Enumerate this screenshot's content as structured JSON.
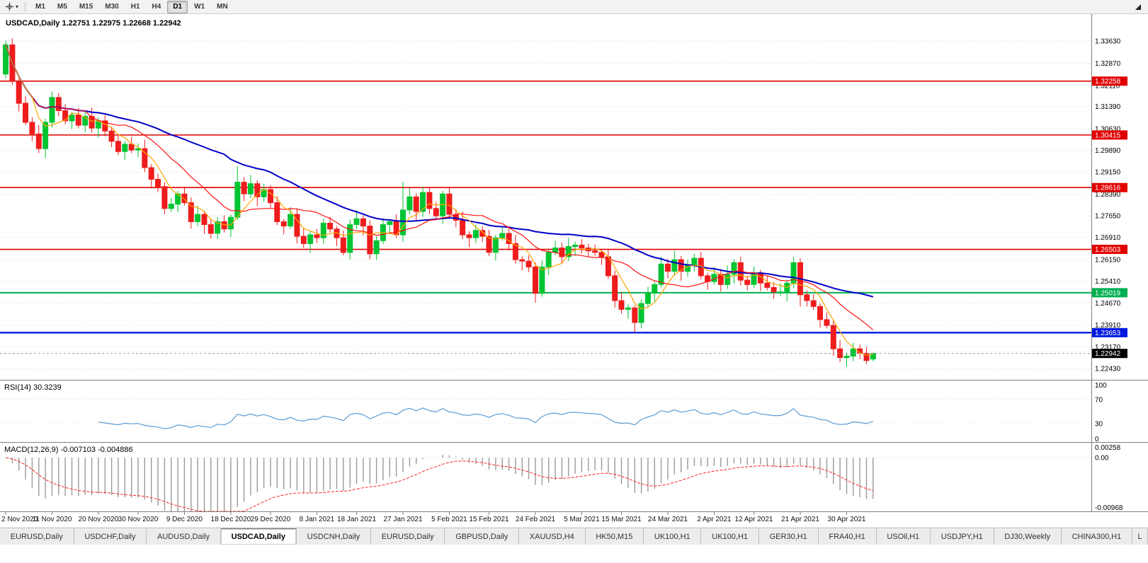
{
  "toolbar": {
    "timeframes": [
      "M1",
      "M5",
      "M15",
      "M30",
      "H1",
      "H4",
      "D1",
      "W1",
      "MN"
    ],
    "active_timeframe": "D1"
  },
  "chart": {
    "title": "USDCAD,Daily 1.22751 1.22975 1.22668 1.22942",
    "symbol": "USDCAD,Daily",
    "ohlc": {
      "open": "1.22751",
      "high": "1.22975",
      "low": "1.22668",
      "close": "1.22942"
    },
    "current_price": "1.22942"
  },
  "price_axis": {
    "ticks": [
      "1.33630",
      "1.32870",
      "1.32110",
      "1.31390",
      "1.30630",
      "1.29890",
      "1.29150",
      "1.28390",
      "1.27650",
      "1.26910",
      "1.26150",
      "1.25410",
      "1.24670",
      "1.23910",
      "1.23170",
      "1.22430"
    ]
  },
  "hlines": [
    {
      "value": 1.32258,
      "label": "1.32258",
      "color": "#e10000",
      "width": 1.6
    },
    {
      "value": 1.30415,
      "label": "1.30415",
      "color": "#e10000",
      "width": 1.6
    },
    {
      "value": 1.28616,
      "label": "1.28616",
      "color": "#e10000",
      "width": 1.6
    },
    {
      "value": 1.26503,
      "label": "1.26503",
      "color": "#e10000",
      "width": 1.6
    },
    {
      "value": 1.25019,
      "label": "1.25019",
      "color": "#00b050",
      "width": 2
    },
    {
      "value": 1.23653,
      "label": "1.23653",
      "color": "#0018e0",
      "width": 2.4
    }
  ],
  "moving_averages": [
    {
      "period": 34,
      "color": "#0000c8",
      "width": 2
    },
    {
      "period": 13,
      "color": "#ff1010",
      "width": 1.2
    },
    {
      "period": 5,
      "color": "#ffa500",
      "width": 1.2
    }
  ],
  "indicators": {
    "rsi": {
      "label": "RSI(14) 30.3239",
      "period": 14,
      "current": "30.3239",
      "levels": [
        70,
        30
      ],
      "scale": [
        "100",
        "70",
        "30",
        "0"
      ],
      "scale_values": [
        100,
        70,
        30,
        0
      ],
      "color": "#5b9bd5"
    },
    "macd": {
      "label": "MACD(12,26,9) -0.007103 -0.004886",
      "fast": 12,
      "slow": 26,
      "signal": 9,
      "current_macd": "-0.007103",
      "current_signal": "-0.004886",
      "scale_top": "0.00258",
      "scale_zero": "0.00",
      "scale_bottom": "-0.00968",
      "range": [
        0.00258,
        -0.00968
      ],
      "histogram_color": "#9a9a9a",
      "signal_color": "#ff2020"
    }
  },
  "colors": {
    "up": "#00c432",
    "down": "#ee1c1c",
    "grid": "#d9d9d9",
    "axis_text": "#000000",
    "current_price_bg": "#000000",
    "separator": "#808080",
    "bg": "#ffffff"
  },
  "chart_data": {
    "type": "candlestick",
    "symbol": "USDCAD",
    "timeframe": "Daily",
    "price_range_top": 1.3455,
    "price_range_bottom": 1.2204,
    "candles": [
      [
        1.325,
        1.3365,
        1.3235,
        1.335
      ],
      [
        1.335,
        1.3372,
        1.3213,
        1.3225
      ],
      [
        1.3225,
        1.3235,
        1.3122,
        1.315
      ],
      [
        1.315,
        1.3175,
        1.3075,
        1.3085
      ],
      [
        1.3085,
        1.3103,
        1.3021,
        1.3045
      ],
      [
        1.3045,
        1.3075,
        1.298,
        1.2995
      ],
      [
        1.2995,
        1.3097,
        1.2963,
        1.3085
      ],
      [
        1.3085,
        1.319,
        1.3067,
        1.317
      ],
      [
        1.317,
        1.3185,
        1.3105,
        1.3125
      ],
      [
        1.3125,
        1.3147,
        1.3078,
        1.309
      ],
      [
        1.309,
        1.312,
        1.3062,
        1.311
      ],
      [
        1.311,
        1.3135,
        1.3065,
        1.3075
      ],
      [
        1.3075,
        1.3123,
        1.3051,
        1.3105
      ],
      [
        1.3105,
        1.3135,
        1.305,
        1.3065
      ],
      [
        1.3065,
        1.3102,
        1.3033,
        1.309
      ],
      [
        1.309,
        1.311,
        1.3037,
        1.3055
      ],
      [
        1.3055,
        1.307,
        1.3,
        1.302
      ],
      [
        1.302,
        1.3042,
        1.2973,
        1.2985
      ],
      [
        1.2985,
        1.302,
        1.2957,
        1.301
      ],
      [
        1.301,
        1.3035,
        1.298,
        1.299
      ],
      [
        1.299,
        1.3013,
        1.2966,
        1.2995
      ],
      [
        1.2995,
        1.3025,
        1.2915,
        1.293
      ],
      [
        1.293,
        1.2942,
        1.2858,
        1.289
      ],
      [
        1.289,
        1.291,
        1.2847,
        1.2865
      ],
      [
        1.2865,
        1.288,
        1.277,
        1.279
      ],
      [
        1.279,
        1.2827,
        1.2778,
        1.2805
      ],
      [
        1.2805,
        1.285,
        1.2777,
        1.284
      ],
      [
        1.284,
        1.2865,
        1.28,
        1.281
      ],
      [
        1.281,
        1.2828,
        1.2721,
        1.2745
      ],
      [
        1.2745,
        1.28,
        1.273,
        1.277
      ],
      [
        1.277,
        1.2782,
        1.2703,
        1.2735
      ],
      [
        1.2735,
        1.2755,
        1.2687,
        1.2705
      ],
      [
        1.2705,
        1.276,
        1.2685,
        1.2745
      ],
      [
        1.2745,
        1.2767,
        1.2708,
        1.272
      ],
      [
        1.272,
        1.277,
        1.2692,
        1.276
      ],
      [
        1.276,
        1.2935,
        1.275,
        1.288
      ],
      [
        1.288,
        1.2898,
        1.2816,
        1.284
      ],
      [
        1.284,
        1.2905,
        1.2825,
        1.2875
      ],
      [
        1.2875,
        1.2887,
        1.2798,
        1.283
      ],
      [
        1.283,
        1.2875,
        1.2812,
        1.2855
      ],
      [
        1.2855,
        1.287,
        1.279,
        1.281
      ],
      [
        1.281,
        1.2832,
        1.2733,
        1.2745
      ],
      [
        1.2745,
        1.2755,
        1.2702,
        1.273
      ],
      [
        1.273,
        1.2795,
        1.272,
        1.277
      ],
      [
        1.277,
        1.2788,
        1.2671,
        1.2695
      ],
      [
        1.2695,
        1.2725,
        1.2655,
        1.267
      ],
      [
        1.267,
        1.2712,
        1.2638,
        1.27
      ],
      [
        1.27,
        1.272,
        1.2672,
        1.269
      ],
      [
        1.269,
        1.2755,
        1.267,
        1.274
      ],
      [
        1.274,
        1.2762,
        1.2708,
        1.272
      ],
      [
        1.272,
        1.273,
        1.2662,
        1.269
      ],
      [
        1.269,
        1.2715,
        1.263,
        1.264
      ],
      [
        1.264,
        1.2753,
        1.2616,
        1.2735
      ],
      [
        1.2735,
        1.2785,
        1.272,
        1.2755
      ],
      [
        1.2755,
        1.2767,
        1.2698,
        1.273
      ],
      [
        1.273,
        1.275,
        1.2617,
        1.2635
      ],
      [
        1.2635,
        1.2695,
        1.2615,
        1.268
      ],
      [
        1.268,
        1.2757,
        1.2668,
        1.2735
      ],
      [
        1.2735,
        1.2755,
        1.2707,
        1.2745
      ],
      [
        1.2745,
        1.277,
        1.269,
        1.27
      ],
      [
        1.27,
        1.2881,
        1.2676,
        1.2785
      ],
      [
        1.2785,
        1.286,
        1.277,
        1.283
      ],
      [
        1.283,
        1.2842,
        1.2748,
        1.278
      ],
      [
        1.278,
        1.2865,
        1.2762,
        1.2845
      ],
      [
        1.2845,
        1.286,
        1.277,
        1.279
      ],
      [
        1.279,
        1.2812,
        1.2753,
        1.2765
      ],
      [
        1.2765,
        1.285,
        1.2737,
        1.284
      ],
      [
        1.284,
        1.2865,
        1.276,
        1.277
      ],
      [
        1.277,
        1.2788,
        1.2726,
        1.275
      ],
      [
        1.275,
        1.278,
        1.2685,
        1.27
      ],
      [
        1.27,
        1.2712,
        1.2658,
        1.269
      ],
      [
        1.269,
        1.2735,
        1.2672,
        1.2715
      ],
      [
        1.2715,
        1.273,
        1.2675,
        1.2695
      ],
      [
        1.2695,
        1.2717,
        1.2628,
        1.264
      ],
      [
        1.264,
        1.27,
        1.2612,
        1.269
      ],
      [
        1.269,
        1.273,
        1.268,
        1.2705
      ],
      [
        1.2705,
        1.2723,
        1.2646,
        1.267
      ],
      [
        1.267,
        1.27,
        1.26,
        1.2615
      ],
      [
        1.2615,
        1.2627,
        1.2578,
        1.261
      ],
      [
        1.261,
        1.263,
        1.2572,
        1.259
      ],
      [
        1.259,
        1.2605,
        1.2468,
        1.25
      ],
      [
        1.25,
        1.2612,
        1.2488,
        1.259
      ],
      [
        1.259,
        1.265,
        1.2562,
        1.264
      ],
      [
        1.264,
        1.268,
        1.263,
        1.2655
      ],
      [
        1.2655,
        1.2673,
        1.2601,
        1.2625
      ],
      [
        1.2625,
        1.269,
        1.261,
        1.266
      ],
      [
        1.266,
        1.2677,
        1.2628,
        1.2665
      ],
      [
        1.2665,
        1.2685,
        1.2637,
        1.2655
      ],
      [
        1.2655,
        1.267,
        1.2625,
        1.2645
      ],
      [
        1.2645,
        1.2667,
        1.2628,
        1.264
      ],
      [
        1.264,
        1.265,
        1.2597,
        1.2625
      ],
      [
        1.2625,
        1.265,
        1.255,
        1.256
      ],
      [
        1.256,
        1.2578,
        1.2451,
        1.2475
      ],
      [
        1.2475,
        1.2505,
        1.243,
        1.2445
      ],
      [
        1.2445,
        1.2462,
        1.2413,
        1.245
      ],
      [
        1.245,
        1.246,
        1.2365,
        1.24
      ],
      [
        1.24,
        1.248,
        1.238,
        1.2465
      ],
      [
        1.2465,
        1.2522,
        1.2453,
        1.25
      ],
      [
        1.25,
        1.254,
        1.2472,
        1.253
      ],
      [
        1.253,
        1.2625,
        1.252,
        1.26
      ],
      [
        1.26,
        1.2618,
        1.2551,
        1.2575
      ],
      [
        1.2575,
        1.2645,
        1.256,
        1.2615
      ],
      [
        1.2615,
        1.2627,
        1.2543,
        1.2575
      ],
      [
        1.2575,
        1.2615,
        1.2557,
        1.2595
      ],
      [
        1.2595,
        1.2635,
        1.2575,
        1.262
      ],
      [
        1.262,
        1.2642,
        1.2548,
        1.256
      ],
      [
        1.256,
        1.257,
        1.2512,
        1.254
      ],
      [
        1.254,
        1.259,
        1.253,
        1.2565
      ],
      [
        1.2565,
        1.2583,
        1.2506,
        1.253
      ],
      [
        1.253,
        1.2595,
        1.2515,
        1.2565
      ],
      [
        1.2565,
        1.2617,
        1.2533,
        1.2605
      ],
      [
        1.2605,
        1.2625,
        1.2527,
        1.2545
      ],
      [
        1.2545,
        1.256,
        1.251,
        1.253
      ],
      [
        1.253,
        1.2592,
        1.2518,
        1.257
      ],
      [
        1.257,
        1.258,
        1.2507,
        1.2535
      ],
      [
        1.2535,
        1.256,
        1.251,
        1.252
      ],
      [
        1.252,
        1.2538,
        1.2481,
        1.2505
      ],
      [
        1.2505,
        1.2535,
        1.249,
        1.2505
      ],
      [
        1.2505,
        1.2547,
        1.2473,
        1.2535
      ],
      [
        1.2535,
        1.2625,
        1.2517,
        1.2605
      ],
      [
        1.2605,
        1.262,
        1.2455,
        1.2495
      ],
      [
        1.2495,
        1.251,
        1.2455,
        1.2475
      ],
      [
        1.2475,
        1.2497,
        1.2443,
        1.2455
      ],
      [
        1.2455,
        1.2465,
        1.2382,
        1.241
      ],
      [
        1.241,
        1.2435,
        1.238,
        1.239
      ],
      [
        1.239,
        1.2408,
        1.2286,
        1.231
      ],
      [
        1.231,
        1.234,
        1.2265,
        1.228
      ],
      [
        1.228,
        1.2297,
        1.2248,
        1.2285
      ],
      [
        1.2285,
        1.233,
        1.2267,
        1.231
      ],
      [
        1.231,
        1.2325,
        1.2275,
        1.2295
      ],
      [
        1.2295,
        1.2317,
        1.2258,
        1.227
      ],
      [
        1.22751,
        1.22975,
        1.22668,
        1.22942
      ]
    ],
    "x_labels": [
      {
        "t": "2 Nov 2020",
        "i": 0
      },
      {
        "t": "11 Nov 2020",
        "i": 7
      },
      {
        "t": "20 Nov 2020",
        "i": 14
      },
      {
        "t": "30 Nov 2020",
        "i": 20
      },
      {
        "t": "9 Dec 2020",
        "i": 27
      },
      {
        "t": "18 Dec 2020",
        "i": 34
      },
      {
        "t": "29 Dec 2020",
        "i": 40
      },
      {
        "t": "8 Jan 2021",
        "i": 47
      },
      {
        "t": "18 Jan 2021",
        "i": 53
      },
      {
        "t": "27 Jan 2021",
        "i": 60
      },
      {
        "t": "5 Feb 2021",
        "i": 67
      },
      {
        "t": "15 Feb 2021",
        "i": 73
      },
      {
        "t": "24 Feb 2021",
        "i": 80
      },
      {
        "t": "5 Mar 2021",
        "i": 87
      },
      {
        "t": "15 Mar 2021",
        "i": 93
      },
      {
        "t": "24 Mar 2021",
        "i": 100
      },
      {
        "t": "2 Apr 2021",
        "i": 107
      },
      {
        "t": "12 Apr 2021",
        "i": 113
      },
      {
        "t": "21 Apr 2021",
        "i": 120
      },
      {
        "t": "30 Apr 2021",
        "i": 127
      }
    ]
  },
  "tabs": {
    "active_index": 3,
    "items": [
      "EURUSD,Daily",
      "USDCHF,Daily",
      "AUDUSD,Daily",
      "USDCAD,Daily",
      "USDCNH,Daily",
      "EURUSD,Daily",
      "GBPUSD,Daily",
      "XAUUSD,H4",
      "HK50,M15",
      "UK100,H1",
      "UK100,H1",
      "GER30,H1",
      "FRA40,H1",
      "USOil,H1",
      "USDJPY,H1",
      "DJ30,Weekly",
      "CHINA300,H1",
      "L"
    ]
  }
}
